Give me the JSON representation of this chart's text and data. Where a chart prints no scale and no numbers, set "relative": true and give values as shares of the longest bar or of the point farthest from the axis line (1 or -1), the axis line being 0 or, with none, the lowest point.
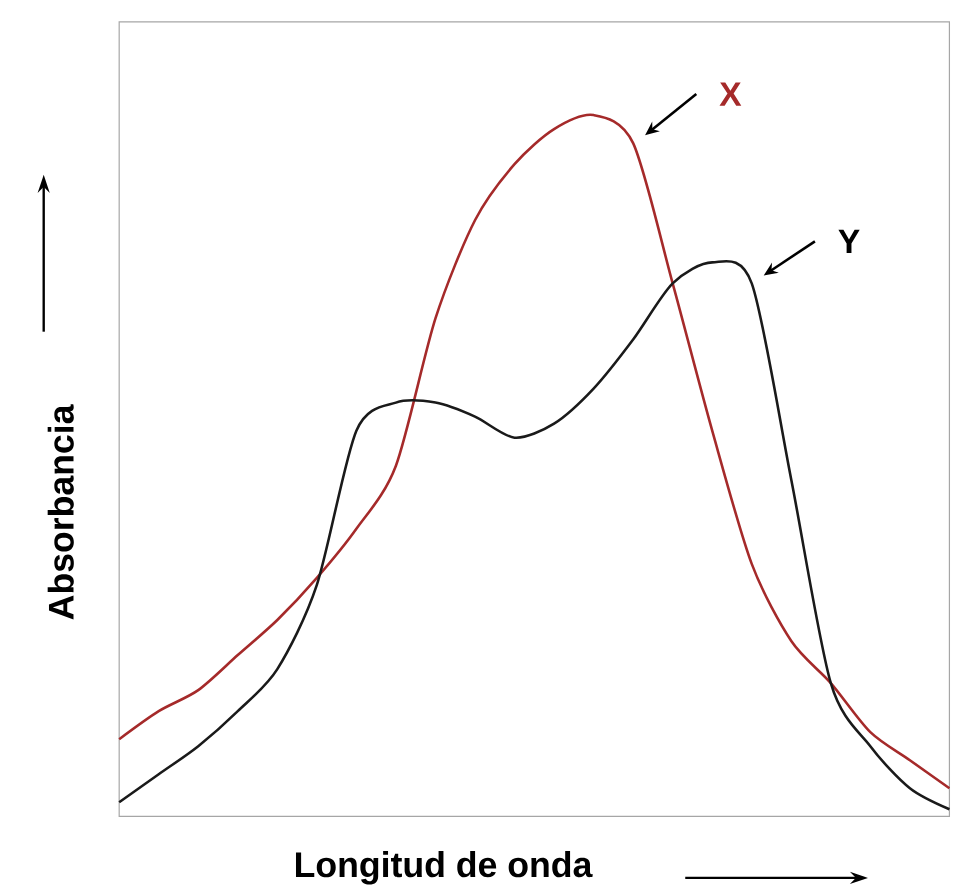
{
  "chart_data": {
    "type": "line",
    "relative": true,
    "xlabel": "Longitud de onda",
    "ylabel": "Absorbancia",
    "categories": [
      null,
      null,
      null,
      null,
      null,
      null,
      null,
      null,
      null,
      null,
      null,
      null,
      null,
      null,
      null,
      null,
      null,
      null,
      null,
      null,
      null,
      null
    ],
    "series": [
      {
        "name": "X",
        "color": "#a52a2a",
        "values": [
          0.11,
          0.15,
          0.18,
          0.23,
          0.28,
          0.34,
          0.41,
          0.5,
          0.71,
          0.85,
          0.93,
          0.98,
          1.0,
          0.96,
          0.76,
          0.55,
          0.36,
          0.25,
          0.19,
          0.12,
          0.08,
          0.04
        ]
      },
      {
        "name": "Y",
        "color": "#1a1a1a",
        "values": [
          0.02,
          0.06,
          0.1,
          0.15,
          0.21,
          0.33,
          0.55,
          0.59,
          0.59,
          0.57,
          0.54,
          0.56,
          0.61,
          0.68,
          0.76,
          0.79,
          0.76,
          0.48,
          0.19,
          0.1,
          0.04,
          0.01
        ]
      }
    ],
    "legend": false,
    "marker": "none",
    "line_style": "solid"
  }
}
